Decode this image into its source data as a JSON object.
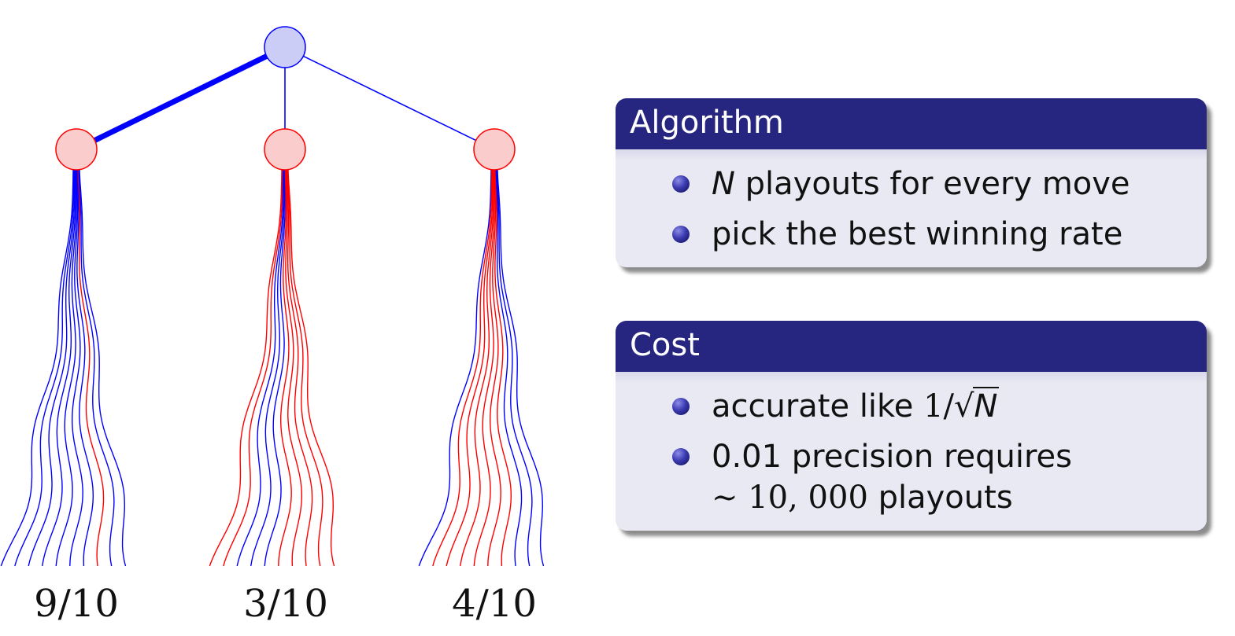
{
  "tree": {
    "root_color": "#cccdf7",
    "child_color": "#fbcccc",
    "win_color": "#0000ff",
    "loss_color": "#ff0000",
    "children": [
      {
        "ratio": "9/10",
        "wins": 9,
        "playouts": 10,
        "selected": true,
        "outcomes": [
          "win",
          "win",
          "win",
          "win",
          "win",
          "win",
          "win",
          "loss",
          "win",
          "win"
        ]
      },
      {
        "ratio": "3/10",
        "wins": 3,
        "playouts": 10,
        "selected": false,
        "outcomes": [
          "loss",
          "loss",
          "win",
          "win",
          "win",
          "loss",
          "loss",
          "loss",
          "loss",
          "loss"
        ]
      },
      {
        "ratio": "4/10",
        "wins": 4,
        "playouts": 10,
        "selected": false,
        "outcomes": [
          "win",
          "loss",
          "loss",
          "loss",
          "loss",
          "loss",
          "loss",
          "win",
          "win",
          "win"
        ]
      }
    ]
  },
  "algorithm": {
    "title": "Algorithm",
    "item1_var": "N",
    "item1_text": " playouts for every move",
    "item2": "pick the best winning rate"
  },
  "cost": {
    "title": "Cost",
    "item1_text": "accurate like ",
    "item1_math_num": "1/",
    "item1_sqrt_sign": "√",
    "item1_sqrt_var": "N",
    "item2_line1": "0.01 precision requires",
    "item2_line2_math": "∼ 10, 000",
    "item2_line2_text": " playouts"
  }
}
